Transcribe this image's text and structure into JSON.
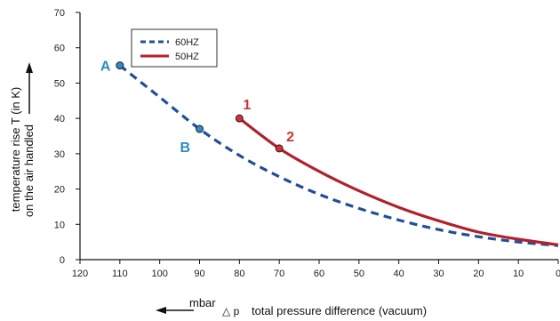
{
  "chart_data": {
    "type": "line",
    "xlabel_unit": "mbar",
    "xlabel_symbol": "△ p",
    "xlabel": "total pressure difference (vacuum)",
    "ylabel_line1": "temperature rise T (in K)",
    "ylabel_line2": "on the air handled",
    "xlim": [
      120,
      0
    ],
    "ylim": [
      0,
      70
    ],
    "x_ticks": [
      120,
      110,
      100,
      90,
      80,
      70,
      60,
      50,
      40,
      30,
      20,
      10,
      0
    ],
    "y_ticks": [
      0,
      10,
      20,
      30,
      40,
      50,
      60,
      70
    ],
    "grid": false,
    "legend_position": "top-left",
    "series": [
      {
        "name": "60HZ",
        "color": "#1f4e9e",
        "style": "dashed",
        "x": [
          110,
          100,
          90,
          80,
          70,
          60,
          50,
          40,
          30,
          20,
          10,
          0
        ],
        "y": [
          55,
          46,
          37,
          29.5,
          23.5,
          18.5,
          14.5,
          11.2,
          8.5,
          6.5,
          5,
          4
        ]
      },
      {
        "name": "50HZ",
        "color": "#b3202a",
        "style": "solid",
        "x": [
          80,
          70,
          60,
          50,
          40,
          30,
          20,
          10,
          0
        ],
        "y": [
          40,
          31.5,
          25,
          19.5,
          14.8,
          11,
          7.8,
          5.8,
          4.2
        ]
      }
    ],
    "annotations": [
      {
        "label": "A",
        "x": 110,
        "y": 55,
        "color": "#2a8cc8"
      },
      {
        "label": "B",
        "x": 90,
        "y": 37,
        "color": "#2a8cc8"
      },
      {
        "label": "1",
        "x": 80,
        "y": 40,
        "color": "#d63030"
      },
      {
        "label": "2",
        "x": 70,
        "y": 31.5,
        "color": "#d63030"
      }
    ]
  }
}
